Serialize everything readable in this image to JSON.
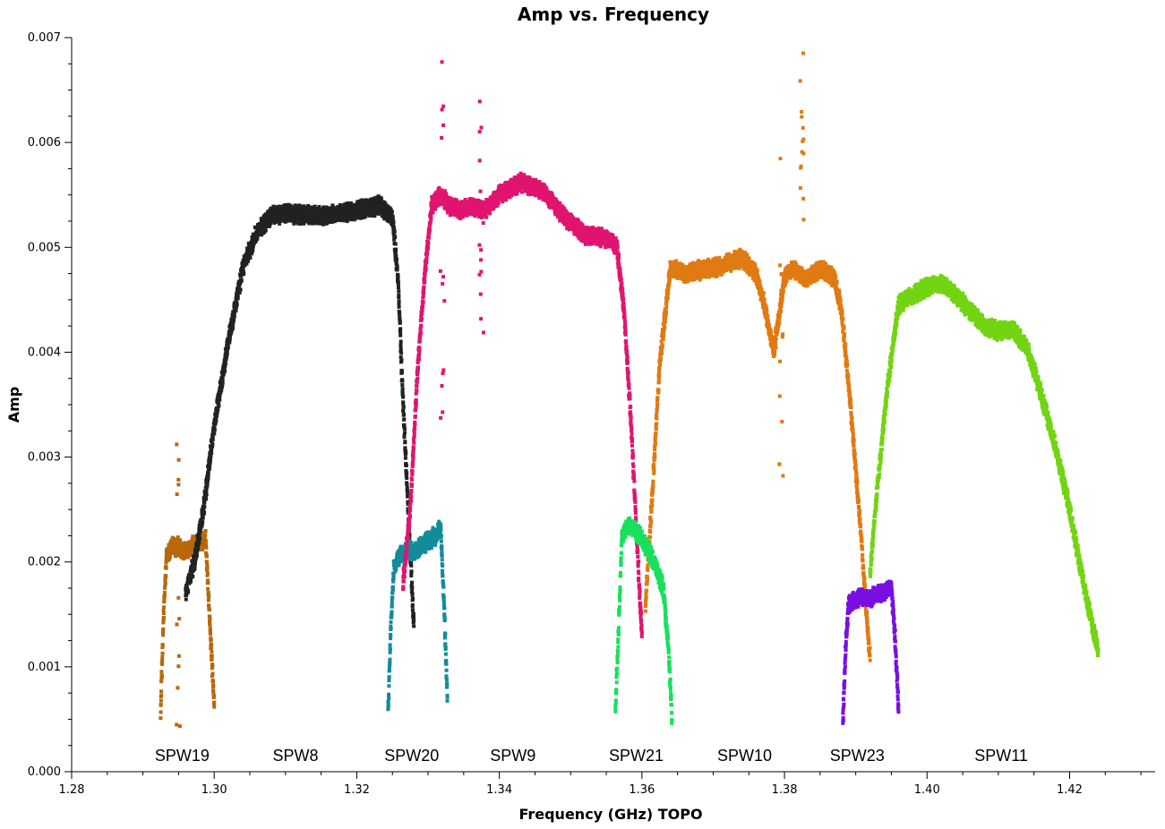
{
  "chart_data": {
    "type": "scatter",
    "title": "Amp vs. Frequency",
    "xlabel": "Frequency (GHz) TOPO",
    "ylabel": "Amp",
    "xlim": [
      1.28,
      1.432
    ],
    "ylim": [
      0.0,
      0.007
    ],
    "x_ticks": [
      {
        "value": 1.28,
        "label": "1.28"
      },
      {
        "value": 1.3,
        "label": "1.30"
      },
      {
        "value": 1.32,
        "label": "1.32"
      },
      {
        "value": 1.34,
        "label": "1.34"
      },
      {
        "value": 1.36,
        "label": "1.36"
      },
      {
        "value": 1.38,
        "label": "1.38"
      },
      {
        "value": 1.4,
        "label": "1.40"
      },
      {
        "value": 1.42,
        "label": "1.42"
      }
    ],
    "y_ticks": [
      {
        "value": 0.0,
        "label": "0.000"
      },
      {
        "value": 0.001,
        "label": "0.001"
      },
      {
        "value": 0.002,
        "label": "0.002"
      },
      {
        "value": 0.003,
        "label": "0.003"
      },
      {
        "value": 0.004,
        "label": "0.004"
      },
      {
        "value": 0.005,
        "label": "0.005"
      },
      {
        "value": 0.006,
        "label": "0.006"
      },
      {
        "value": 0.007,
        "label": "0.007"
      }
    ],
    "grid": false,
    "spw_labels": [
      {
        "text": "SPW19",
        "x": 1.2955
      },
      {
        "text": "SPW8",
        "x": 1.3114
      },
      {
        "text": "SPW20",
        "x": 1.3277
      },
      {
        "text": "SPW9",
        "x": 1.3419
      },
      {
        "text": "SPW21",
        "x": 1.3592
      },
      {
        "text": "SPW10",
        "x": 1.3744
      },
      {
        "text": "SPW23",
        "x": 1.3902
      },
      {
        "text": "SPW11",
        "x": 1.4104
      }
    ],
    "series": [
      {
        "color": "#b8680c",
        "x": [
          1.2925,
          1.2929,
          1.2933,
          1.294,
          1.295,
          1.296,
          1.297,
          1.298,
          1.2988,
          1.2994,
          1.3
        ],
        "y": [
          0.0006,
          0.0015,
          0.00205,
          0.00215,
          0.00213,
          0.0021,
          0.00215,
          0.0022,
          0.00222,
          0.0014,
          0.00065
        ]
      },
      {
        "color": "#222222",
        "x": [
          1.296,
          1.2972,
          1.2985,
          1.3,
          1.302,
          1.304,
          1.306,
          1.308,
          1.31,
          1.315,
          1.32,
          1.323,
          1.325,
          1.3258,
          1.3265,
          1.3272,
          1.328
        ],
        "y": [
          0.0017,
          0.002,
          0.0025,
          0.0033,
          0.0041,
          0.0048,
          0.00515,
          0.0053,
          0.00532,
          0.0053,
          0.00535,
          0.0054,
          0.0053,
          0.0047,
          0.0035,
          0.0025,
          0.0014
        ]
      },
      {
        "color": "#138c9a",
        "x": [
          1.3244,
          1.3248,
          1.3252,
          1.326,
          1.327,
          1.328,
          1.329,
          1.33,
          1.331,
          1.3318,
          1.3323,
          1.3327
        ],
        "y": [
          0.0006,
          0.0014,
          0.00195,
          0.00205,
          0.00212,
          0.0021,
          0.00215,
          0.0022,
          0.00225,
          0.00232,
          0.0015,
          0.0007
        ]
      },
      {
        "color": "#e0156f",
        "x": [
          1.3265,
          1.3275,
          1.3285,
          1.3295,
          1.3305,
          1.3318,
          1.333,
          1.3345,
          1.336,
          1.338,
          1.34,
          1.343,
          1.346,
          1.349,
          1.352,
          1.355,
          1.3565,
          1.3575,
          1.3585,
          1.3593,
          1.36
        ],
        "y": [
          0.0018,
          0.0025,
          0.0038,
          0.0047,
          0.0054,
          0.0055,
          0.0054,
          0.00535,
          0.0054,
          0.00535,
          0.0055,
          0.00562,
          0.00555,
          0.0053,
          0.00512,
          0.00508,
          0.005,
          0.0044,
          0.0033,
          0.0022,
          0.0013
        ]
      },
      {
        "color": "#e07a12",
        "x": [
          1.3605,
          1.3615,
          1.3625,
          1.364,
          1.366,
          1.368,
          1.37,
          1.372,
          1.374,
          1.376,
          1.377,
          1.3785,
          1.38,
          1.381,
          1.383,
          1.385,
          1.387,
          1.388,
          1.3895,
          1.3908,
          1.3915,
          1.392
        ],
        "y": [
          0.0016,
          0.0027,
          0.0039,
          0.0048,
          0.00475,
          0.00478,
          0.0048,
          0.00485,
          0.0049,
          0.00475,
          0.0045,
          0.004,
          0.0047,
          0.0048,
          0.0047,
          0.0048,
          0.0047,
          0.0044,
          0.0033,
          0.0022,
          0.0015,
          0.0011
        ]
      },
      {
        "color": "#18e05c",
        "x": [
          1.3563,
          1.3568,
          1.3572,
          1.358,
          1.359,
          1.36,
          1.361,
          1.362,
          1.363,
          1.3637,
          1.3642
        ],
        "y": [
          0.0006,
          0.0015,
          0.00225,
          0.00235,
          0.0023,
          0.00222,
          0.0021,
          0.00195,
          0.00175,
          0.0012,
          0.00055
        ]
      },
      {
        "color": "#7810e0",
        "x": [
          1.3882,
          1.3886,
          1.389,
          1.39,
          1.391,
          1.392,
          1.393,
          1.394,
          1.395,
          1.3955,
          1.396
        ],
        "y": [
          0.0005,
          0.0012,
          0.0016,
          0.00165,
          0.00167,
          0.00165,
          0.0017,
          0.00172,
          0.00175,
          0.0013,
          0.0006
        ]
      },
      {
        "color": "#72d412",
        "x": [
          1.392,
          1.393,
          1.3945,
          1.396,
          1.398,
          1.4,
          1.402,
          1.404,
          1.406,
          1.408,
          1.41,
          1.412,
          1.414,
          1.416,
          1.418,
          1.42,
          1.4215,
          1.423,
          1.424
        ],
        "y": [
          0.0019,
          0.0027,
          0.0037,
          0.00445,
          0.00455,
          0.00462,
          0.00466,
          0.00455,
          0.0044,
          0.00425,
          0.0042,
          0.00422,
          0.00405,
          0.0036,
          0.0031,
          0.0025,
          0.00195,
          0.00145,
          0.00115
        ]
      }
    ],
    "spikes": [
      {
        "color": "#e0156f",
        "x": 1.332,
        "y": [
          0.0033,
          0.0068
        ]
      },
      {
        "color": "#e0156f",
        "x": 1.3375,
        "y": [
          0.0041,
          0.0065
        ]
      },
      {
        "color": "#e07a12",
        "x": 1.3795,
        "y": [
          0.002,
          0.006
        ]
      },
      {
        "color": "#e07a12",
        "x": 1.3825,
        "y": [
          0.005,
          0.0069
        ]
      },
      {
        "color": "#b8680c",
        "x": 1.295,
        "y": [
          0.0004,
          0.0033
        ]
      }
    ]
  }
}
